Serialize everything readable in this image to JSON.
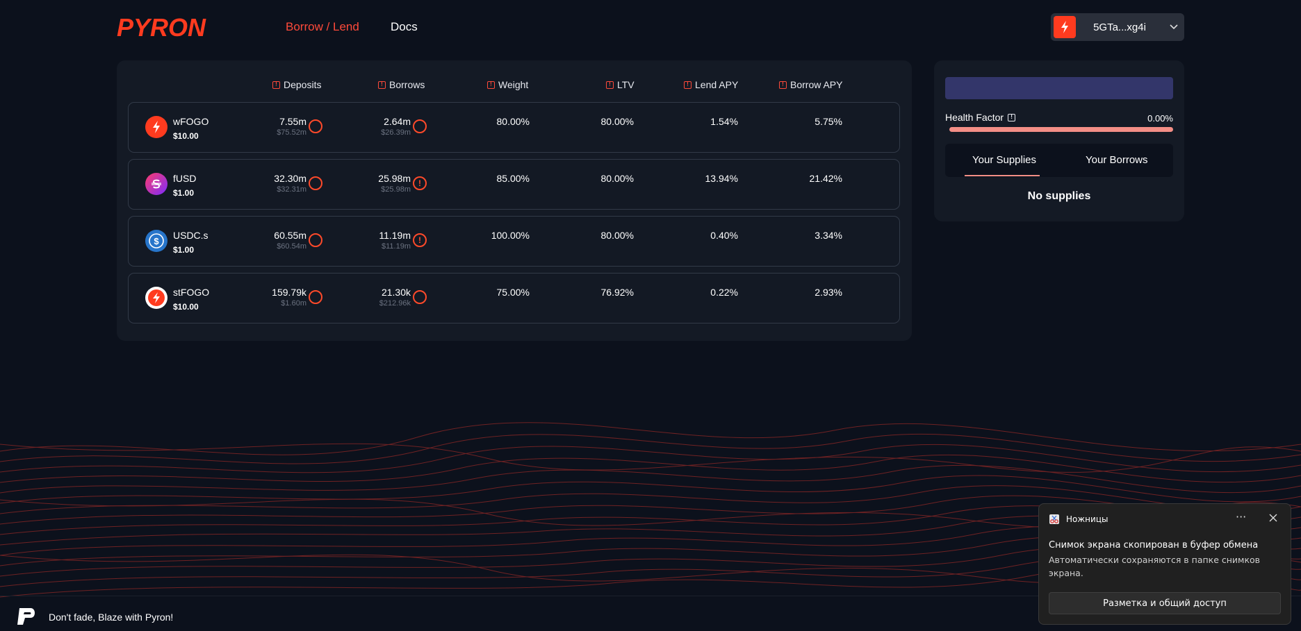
{
  "header": {
    "logo_text": "PYRON",
    "nav": [
      {
        "label": "Borrow / Lend",
        "active": true
      },
      {
        "label": "Docs",
        "active": false
      }
    ],
    "wallet": {
      "address": "5GTa...xg4i"
    }
  },
  "market": {
    "columns": {
      "deposits": "Deposits",
      "borrows": "Borrows",
      "weight": "Weight",
      "ltv": "LTV",
      "lend_apy": "Lend APY",
      "borrow_apy": "Borrow APY"
    },
    "rows": [
      {
        "name": "wFOGO",
        "price": "$10.00",
        "deposits": "7.55m",
        "deposits_usd": "$75.52m",
        "borrows": "2.64m",
        "borrows_usd": "$26.39m",
        "weight": "80.00%",
        "ltv": "80.00%",
        "lend_apy": "1.54%",
        "borrow_apy": "5.75%"
      },
      {
        "name": "fUSD",
        "price": "$1.00",
        "deposits": "32.30m",
        "deposits_usd": "$32.31m",
        "borrows": "25.98m",
        "borrows_usd": "$25.98m",
        "weight": "85.00%",
        "ltv": "80.00%",
        "lend_apy": "13.94%",
        "borrow_apy": "21.42%"
      },
      {
        "name": "USDC.s",
        "price": "$1.00",
        "deposits": "60.55m",
        "deposits_usd": "$60.54m",
        "borrows": "11.19m",
        "borrows_usd": "$11.19m",
        "weight": "100.00%",
        "ltv": "80.00%",
        "lend_apy": "0.40%",
        "borrow_apy": "3.34%"
      },
      {
        "name": "stFOGO",
        "price": "$10.00",
        "deposits": "159.79k",
        "deposits_usd": "$1.60m",
        "borrows": "21.30k",
        "borrows_usd": "$212.96k",
        "weight": "75.00%",
        "ltv": "76.92%",
        "lend_apy": "0.22%",
        "borrow_apy": "2.93%"
      }
    ]
  },
  "account": {
    "health_factor_label": "Health Factor",
    "health_factor_value": "0.00%",
    "tabs": [
      {
        "label": "Your Supplies",
        "active": true
      },
      {
        "label": "Your Borrows",
        "active": false
      }
    ],
    "empty_text": "No supplies"
  },
  "footer": {
    "tagline": "Don't fade, Blaze with Pyron!"
  },
  "toast": {
    "app": "Ножницы",
    "more": "···",
    "title": "Снимок экрана скопирован в буфер обмена",
    "body": "Автоматически сохраняются в папке снимков экрана.",
    "button": "Разметка и общий доступ"
  },
  "colors": {
    "accent": "#ff4a3a",
    "background": "#0c111c",
    "panel": "#141a25",
    "health_bar": "#f38e86"
  }
}
